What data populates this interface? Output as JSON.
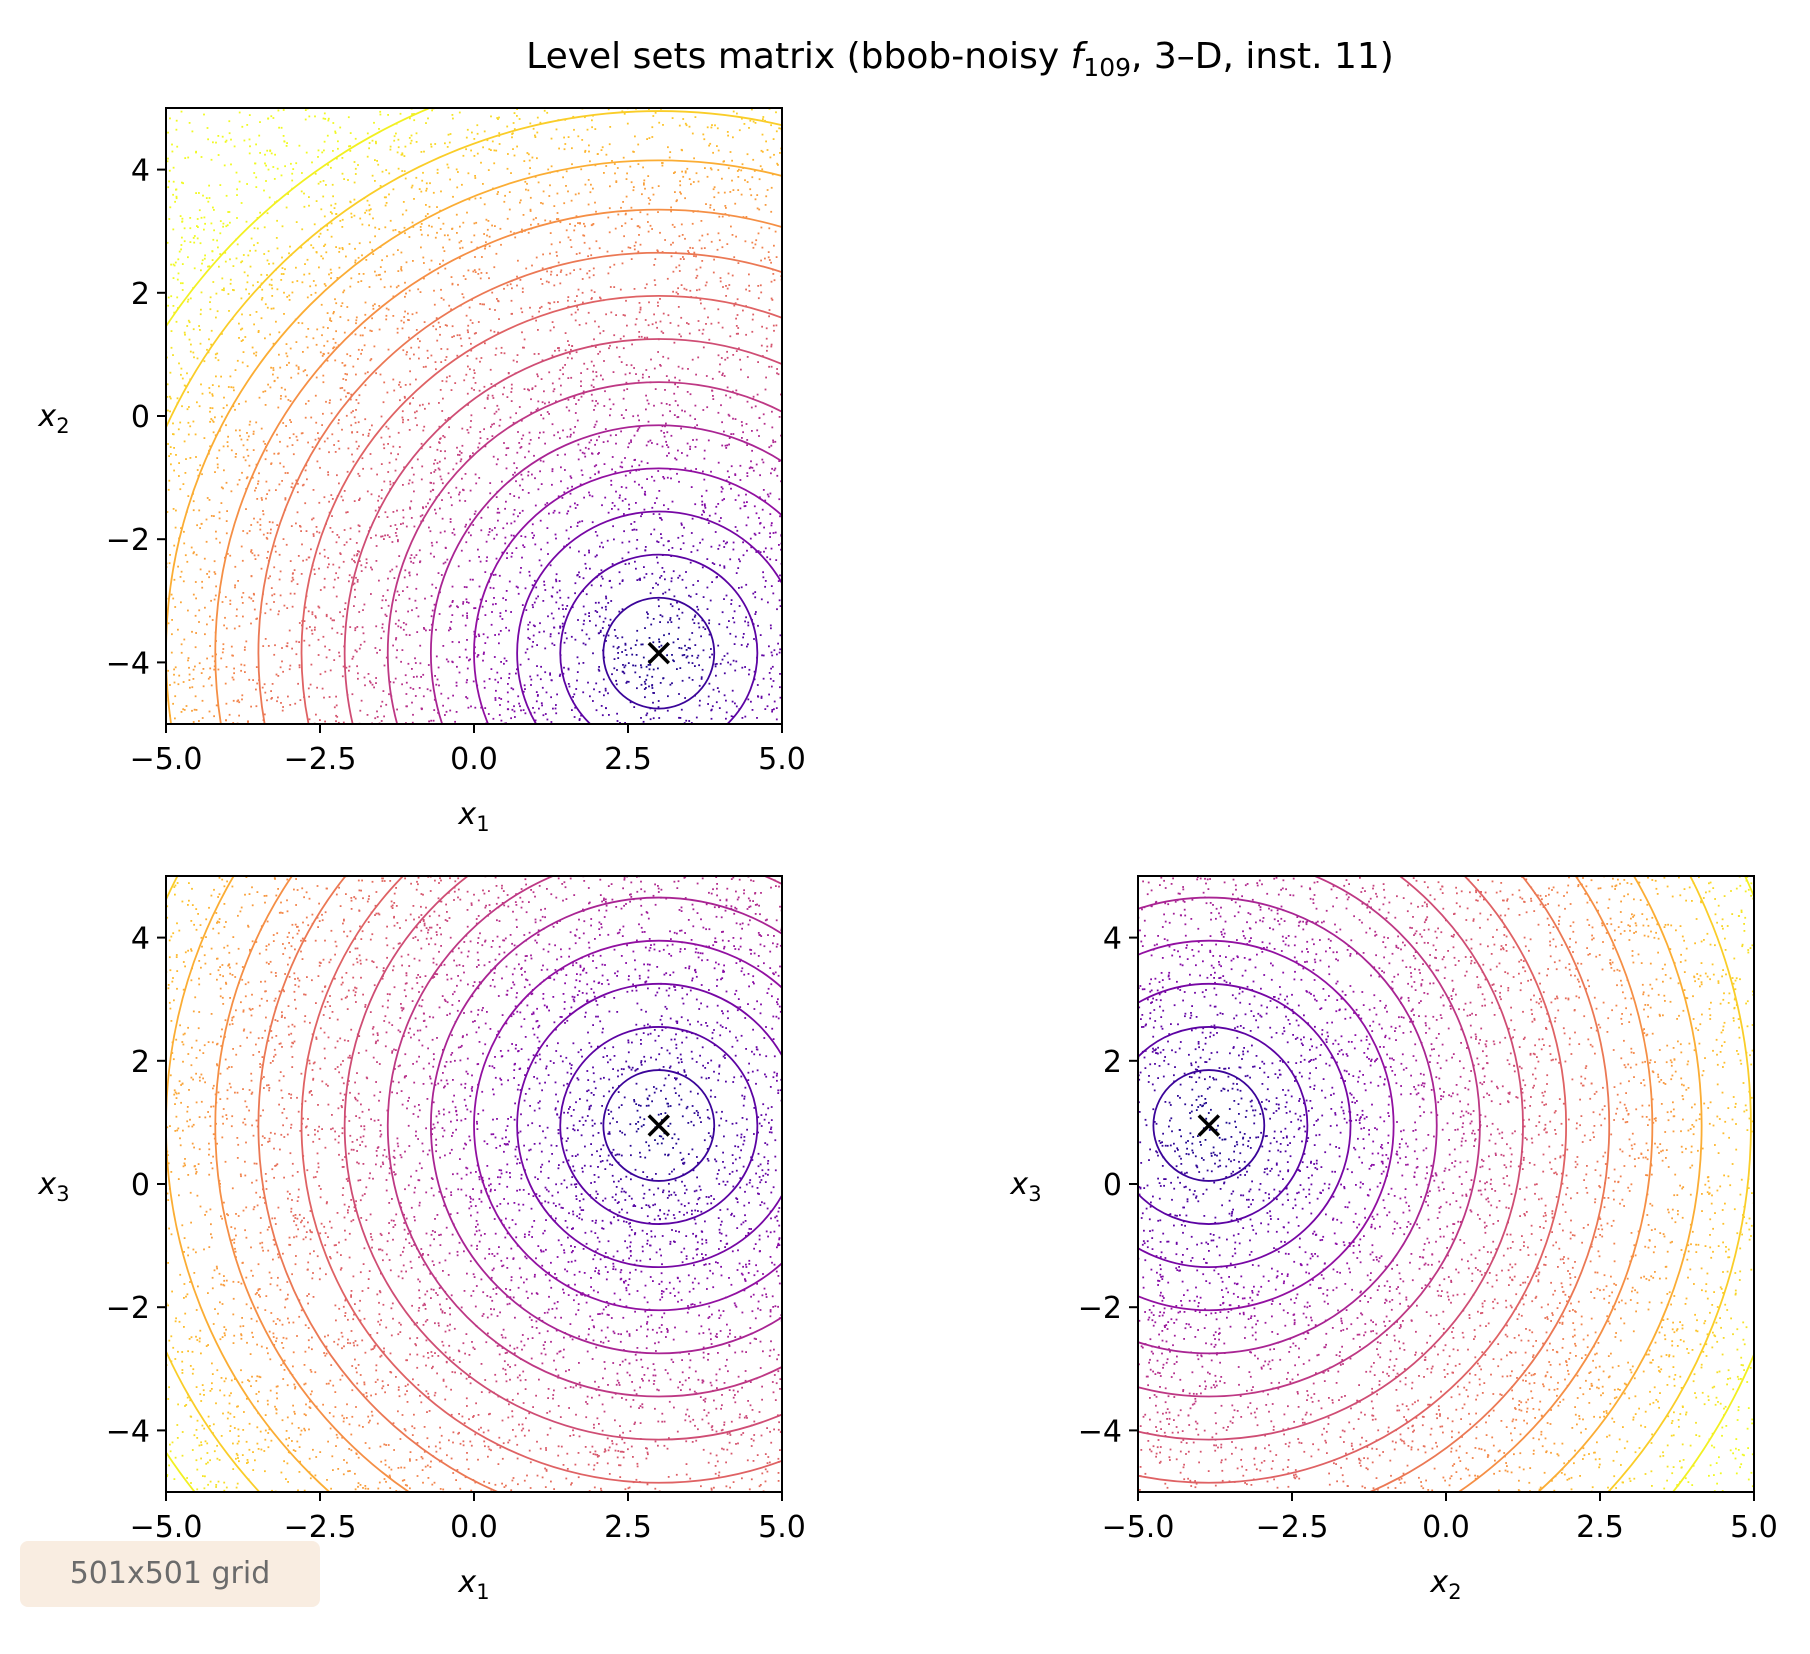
{
  "title": {
    "prefix": "Level sets matrix (bbob-noisy ",
    "italic": "f",
    "sub": "109",
    "suffix": ", 3–D, inst. 11)"
  },
  "badge": "501x501 grid",
  "colors": {
    "colormap": "plasma",
    "optimum_marker": "#000000",
    "axis": "#000000"
  },
  "chart_data": [
    {
      "type": "contour",
      "panel": "x1-x2",
      "xlabel": {
        "base": "x",
        "sub": "1"
      },
      "ylabel": {
        "base": "x",
        "sub": "2"
      },
      "xlim": [
        -5,
        5
      ],
      "ylim": [
        -5,
        5
      ],
      "xticks": [
        "−5.0",
        "−2.5",
        "0.0",
        "2.5",
        "5.0"
      ],
      "xtick_values": [
        -5,
        -2.5,
        0,
        2.5,
        5
      ],
      "yticks": [
        "−4",
        "−2",
        "0",
        "2",
        "4"
      ],
      "ytick_values": [
        -4,
        -2,
        0,
        2,
        4
      ],
      "optimum": [
        3.0,
        -3.85
      ],
      "level_radii": [
        0.9,
        1.6,
        2.3,
        3.0,
        3.7,
        4.4,
        5.1,
        5.8,
        6.5,
        7.2,
        8.0,
        8.8,
        9.6
      ],
      "grid": false
    },
    {
      "type": "contour",
      "panel": "x1-x3",
      "xlabel": {
        "base": "x",
        "sub": "1"
      },
      "ylabel": {
        "base": "x",
        "sub": "3"
      },
      "xlim": [
        -5,
        5
      ],
      "ylim": [
        -5,
        5
      ],
      "xticks": [
        "−5.0",
        "−2.5",
        "0.0",
        "2.5",
        "5.0"
      ],
      "xtick_values": [
        -5,
        -2.5,
        0,
        2.5,
        5
      ],
      "yticks": [
        "−4",
        "−2",
        "0",
        "2",
        "4"
      ],
      "ytick_values": [
        -4,
        -2,
        0,
        2,
        4
      ],
      "optimum": [
        3.0,
        0.95
      ],
      "level_radii": [
        0.9,
        1.6,
        2.3,
        3.0,
        3.7,
        4.4,
        5.1,
        5.8,
        6.5,
        7.2,
        8.0,
        8.8,
        9.6
      ],
      "grid": false
    },
    {
      "type": "contour",
      "panel": "x2-x3",
      "xlabel": {
        "base": "x",
        "sub": "2"
      },
      "ylabel": {
        "base": "x",
        "sub": "3"
      },
      "xlim": [
        -5,
        5
      ],
      "ylim": [
        -5,
        5
      ],
      "xticks": [
        "−5.0",
        "−2.5",
        "0.0",
        "2.5",
        "5.0"
      ],
      "xtick_values": [
        -5,
        -2.5,
        0,
        2.5,
        5
      ],
      "yticks": [
        "−4",
        "−2",
        "0",
        "2",
        "4"
      ],
      "ytick_values": [
        -4,
        -2,
        0,
        2,
        4
      ],
      "optimum": [
        -3.85,
        0.95
      ],
      "level_radii": [
        0.9,
        1.6,
        2.3,
        3.0,
        3.7,
        4.4,
        5.1,
        5.8,
        6.5,
        7.2,
        8.0,
        8.8,
        9.6
      ],
      "grid": false
    }
  ]
}
